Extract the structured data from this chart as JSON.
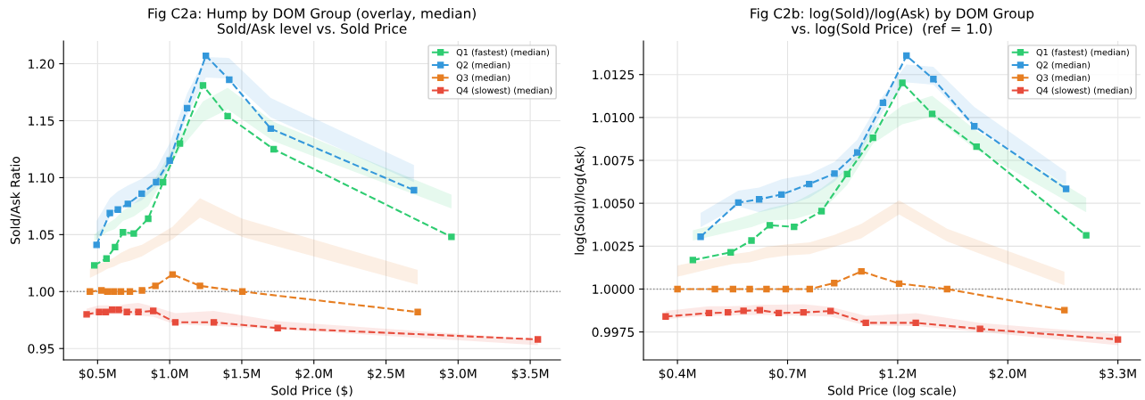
{
  "chart_data": [
    {
      "type": "line",
      "title": "Fig C2a: Hump by DOM Group (overlay, median)\nSold/Ask level vs. Sold Price",
      "xlabel": "Sold Price ($)",
      "ylabel": "Sold/Ask Ratio",
      "xlim": [
        0.264,
        3.71
      ],
      "ylim": [
        0.94,
        1.22
      ],
      "xticks": [
        {
          "value": 0.5,
          "label": "$0.5M"
        },
        {
          "value": 1.0,
          "label": "$1.0M"
        },
        {
          "value": 1.5,
          "label": "$1.5M"
        },
        {
          "value": 2.0,
          "label": "$2.0M"
        },
        {
          "value": 2.5,
          "label": "$2.5M"
        },
        {
          "value": 3.0,
          "label": "$3.0M"
        },
        {
          "value": 3.5,
          "label": "$3.5M"
        }
      ],
      "yticks": [
        0.95,
        {
          "value": 1.0,
          "label": "1.00"
        },
        1.05,
        {
          "value": 1.1,
          "label": "1.10"
        },
        1.15,
        {
          "value": 1.2,
          "label": "1.20"
        }
      ],
      "grid": true,
      "legend": "top right",
      "marker": "square",
      "line_style": "dashed",
      "ref_lines": [
        {
          "axis": "y",
          "value": 1.0,
          "color": "#888888",
          "line_style": "dotted"
        }
      ],
      "series": [
        {
          "name": "Q1 (fastest) (median)",
          "color": "#2ecc71",
          "x": [
            0.477,
            0.562,
            0.621,
            0.676,
            0.751,
            0.851,
            0.954,
            1.071,
            1.231,
            1.402,
            1.721,
            2.954
          ],
          "values": [
            1.023,
            1.029,
            1.039,
            1.052,
            1.051,
            1.064,
            1.096,
            1.13,
            1.181,
            1.154,
            1.125,
            1.048
          ],
          "lower": [
            1.044,
            1.052,
            1.055,
            1.062,
            1.066,
            1.075,
            1.098,
            1.125,
            1.149,
            1.16,
            1.132,
            1.073
          ],
          "upper": [
            1.05,
            1.059,
            1.064,
            1.071,
            1.077,
            1.089,
            1.111,
            1.137,
            1.167,
            1.179,
            1.149,
            1.085
          ]
        },
        {
          "name": "Q2 (median)",
          "color": "#3498db",
          "x": [
            0.493,
            0.585,
            0.641,
            0.71,
            0.806,
            0.906,
            1.0,
            1.121,
            1.251,
            1.413,
            1.701,
            2.694
          ],
          "values": [
            1.041,
            1.069,
            1.072,
            1.077,
            1.086,
            1.096,
            1.115,
            1.161,
            1.207,
            1.186,
            1.143,
            1.089
          ],
          "lower": [
            1.045,
            1.065,
            1.071,
            1.075,
            1.08,
            1.092,
            1.111,
            1.154,
            1.188,
            1.187,
            1.153,
            1.096
          ],
          "upper": [
            1.062,
            1.082,
            1.088,
            1.093,
            1.099,
            1.108,
            1.13,
            1.174,
            1.206,
            1.205,
            1.17,
            1.111
          ]
        },
        {
          "name": "Q3 (median)",
          "color": "#e67e22",
          "x": [
            0.447,
            0.527,
            0.568,
            0.614,
            0.662,
            0.724,
            0.808,
            0.901,
            1.02,
            1.21,
            1.504,
            2.72
          ],
          "values": [
            1.0,
            1.001,
            1.0,
            1.0,
            1.0,
            1.0,
            1.001,
            1.005,
            1.015,
            1.005,
            1.0,
            0.982
          ],
          "lower": [
            1.012,
            1.017,
            1.02,
            1.022,
            1.025,
            1.027,
            1.031,
            1.038,
            1.046,
            1.065,
            1.048,
            1.006
          ],
          "upper": [
            1.02,
            1.025,
            1.027,
            1.03,
            1.034,
            1.038,
            1.041,
            1.048,
            1.057,
            1.082,
            1.064,
            1.019
          ]
        },
        {
          "name": "Q4 (slowest) (median)",
          "color": "#e74c3c",
          "x": [
            0.424,
            0.511,
            0.557,
            0.601,
            0.646,
            0.703,
            0.783,
            0.886,
            1.039,
            1.306,
            1.749,
            3.553
          ],
          "values": [
            0.98,
            0.982,
            0.982,
            0.984,
            0.984,
            0.982,
            0.982,
            0.983,
            0.973,
            0.973,
            0.968,
            0.958
          ],
          "lower": [
            0.978,
            0.98,
            0.98,
            0.98,
            0.98,
            0.98,
            0.979,
            0.978,
            0.971,
            0.97,
            0.967,
            0.953
          ],
          "upper": [
            0.985,
            0.988,
            0.988,
            0.988,
            0.988,
            0.989,
            0.99,
            0.987,
            0.981,
            0.983,
            0.974,
            0.958
          ]
        }
      ]
    },
    {
      "type": "line",
      "title": "Fig C2b: log(Sold)/log(Ask) by DOM Group\nvs. log(Sold Price)  (ref = 1.0)",
      "xlabel": "Sold Price (log scale)",
      "ylabel": "log(Sold)/log(Ask)",
      "log": "x",
      "xlim": [
        0.369,
        3.7
      ],
      "ylim": [
        0.99587,
        1.01446
      ],
      "xticks": [
        {
          "value": 0.432,
          "label": "$0.4M"
        },
        {
          "value": 0.72,
          "label": "$0.7M"
        },
        {
          "value": 1.2,
          "label": "$1.2M"
        },
        {
          "value": 2.0,
          "label": "$2.0M"
        },
        {
          "value": 3.333,
          "label": "$3.3M"
        }
      ],
      "yticks": [
        0.9975,
        {
          "value": 1.0,
          "label": "1.0000"
        },
        1.0025,
        {
          "value": 1.005,
          "label": "1.0050"
        },
        1.0075,
        {
          "value": 1.01,
          "label": "1.0100"
        },
        1.0125
      ],
      "grid": true,
      "legend": "top right",
      "marker": "square",
      "line_style": "dashed",
      "ref_lines": [
        {
          "axis": "y",
          "value": 1.0,
          "color": "#888888",
          "line_style": "dotted"
        }
      ],
      "series": [
        {
          "name": "Q1 (fastest) (median)",
          "color": "#2ecc71",
          "x": [
            0.464,
            0.553,
            0.609,
            0.663,
            0.742,
            0.843,
            0.949,
            1.07,
            1.226,
            1.408,
            1.73,
            2.877
          ],
          "values": [
            1.00169,
            1.00214,
            1.00283,
            1.00372,
            1.00363,
            1.00454,
            1.0067,
            1.00882,
            1.01202,
            1.01021,
            1.0083,
            1.00313
          ],
          "lower": [
            1.00283,
            1.00333,
            1.00361,
            1.00398,
            1.00407,
            1.00454,
            1.00606,
            1.00848,
            1.0096,
            1.01006,
            1.00811,
            1.00448
          ],
          "upper": [
            1.00342,
            1.00398,
            1.00435,
            1.00472,
            1.00504,
            1.00588,
            1.00699,
            1.00941,
            1.01071,
            1.01127,
            1.00923,
            1.00532
          ]
        },
        {
          "name": "Q2 (median)",
          "color": "#3498db",
          "x": [
            0.481,
            0.573,
            0.631,
            0.7,
            0.796,
            0.895,
            0.995,
            1.121,
            1.25,
            1.416,
            1.712,
            2.621
          ],
          "values": [
            1.00305,
            1.00504,
            1.00523,
            1.00551,
            1.00612,
            1.00673,
            1.00796,
            1.01086,
            1.0136,
            1.01224,
            1.00949,
            1.00584
          ],
          "lower": [
            1.00361,
            1.00482,
            1.00448,
            1.00476,
            1.00532,
            1.00625,
            1.00765,
            1.01034,
            1.01205,
            1.01192,
            1.00941,
            1.00606
          ],
          "upper": [
            1.00444,
            1.00573,
            1.00592,
            1.0064,
            1.0067,
            1.00741,
            1.00871,
            1.01127,
            1.01309,
            1.01295,
            1.01062,
            1.00684
          ]
        },
        {
          "name": "Q3 (median)",
          "color": "#e67e22",
          "x": [
            0.432,
            0.514,
            0.559,
            0.604,
            0.653,
            0.714,
            0.798,
            0.894,
            1.014,
            1.208,
            1.509,
            2.601
          ],
          "values": [
            1.0,
            1.0,
            1.0,
            1.0,
            1.0,
            1.0,
            1.0,
            1.00035,
            1.00103,
            1.00032,
            1.0,
            0.99877
          ],
          "lower": [
            1.00072,
            1.00125,
            1.00147,
            1.00156,
            1.00179,
            1.00194,
            1.00203,
            1.00246,
            1.00296,
            1.00435,
            1.00277,
            1.00022
          ],
          "upper": [
            1.00138,
            1.00179,
            1.00203,
            1.00216,
            1.00246,
            1.00259,
            1.00272,
            1.00315,
            1.0038,
            1.00517,
            1.00352,
            1.00101
          ]
        },
        {
          "name": "Q4 (slowest) (median)",
          "color": "#e74c3c",
          "x": [
            0.409,
            0.5,
            0.546,
            0.587,
            0.633,
            0.691,
            0.775,
            0.879,
            1.035,
            1.305,
            1.758,
            3.333
          ],
          "values": [
            0.9984,
            0.9986,
            0.99864,
            0.99873,
            0.99877,
            0.9986,
            0.99864,
            0.99872,
            0.99803,
            0.99803,
            0.99768,
            0.99706
          ],
          "lower": [
            0.99825,
            0.99844,
            0.99846,
            0.99848,
            0.99849,
            0.99848,
            0.99844,
            0.9984,
            0.99788,
            0.99784,
            0.99751,
            0.99673
          ],
          "upper": [
            0.99872,
            0.999,
            0.999,
            0.99903,
            0.99909,
            0.99909,
            0.99911,
            0.99896,
            0.99844,
            0.99859,
            0.99803,
            0.99738
          ]
        }
      ]
    }
  ]
}
